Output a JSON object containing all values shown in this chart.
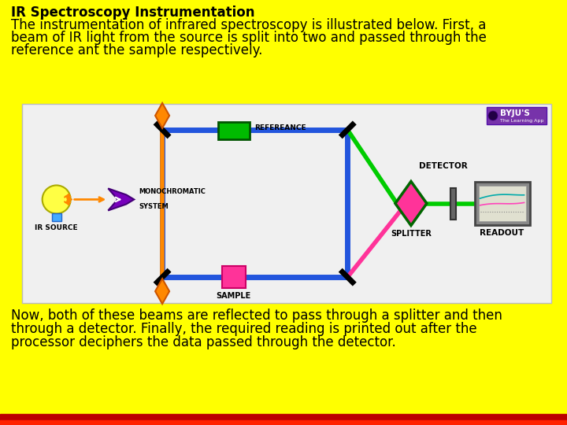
{
  "bg_color": "#FFFF00",
  "diagram_bg": "#F0F0F0",
  "title_text": "IR Spectroscopy Instrumentation",
  "para1_line1": "The instrumentation of infrared spectroscopy is illustrated below. First, a",
  "para1_line2": "beam of IR light from the source is split into two and passed through the",
  "para1_line3": "reference ant the sample respectively.",
  "para2_line1": "Now, both of these beams are reflected to pass through a splitter and then",
  "para2_line2": "through a detector. Finally, the required reading is printed out after the",
  "para2_line3": "processor deciphers the data passed through the detector.",
  "text_color": "#000000",
  "title_fontsize": 12,
  "para_fontsize": 12,
  "blue_color": "#2255DD",
  "green_color": "#00CC00",
  "orange_color": "#FF8800",
  "pink_color": "#FF3399",
  "purple_color": "#6600AA",
  "dark_green_border": "#006600",
  "readout_gray": "#888888",
  "bottom_bar_red": "#CC0000",
  "bottom_bar_bright": "#FF2200"
}
